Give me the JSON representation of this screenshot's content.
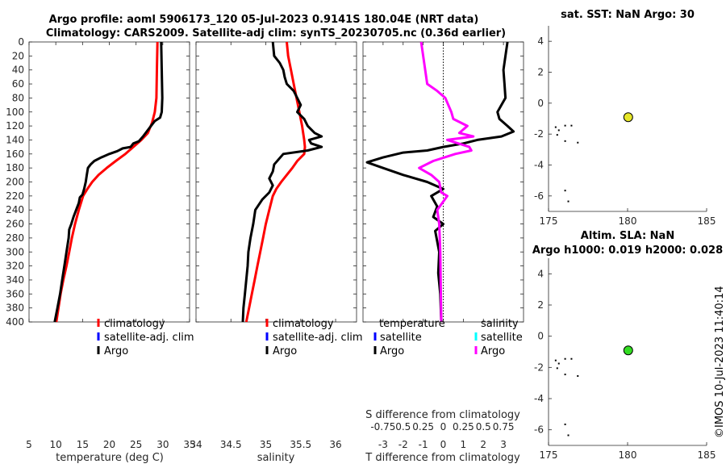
{
  "header": {
    "title_line1": "Argo profile: aoml 5906173_120 05-Jul-2023 0.9141S 180.04E (NRT data)",
    "title_line2": "Climatology: CARS2009. Satellite-adj clim: synTS_20230705.nc (0.36d earlier)"
  },
  "colors": {
    "climatology": "#ff0000",
    "satellite_adj": "#0000ff",
    "argo": "#000000",
    "argo_salinity_diff": "#ff00ff",
    "satellite_salinity": "#00ffff",
    "marker_sst": "#e6e629",
    "marker_sla": "#33dd22"
  },
  "legend_profiles": {
    "items": [
      "climatology",
      "satellite-adj. clim",
      "Argo"
    ]
  },
  "legend_diff": {
    "temperature_header": "temperature",
    "salinity_header": "salinity",
    "temperature_items": [
      "satellite",
      "Argo"
    ],
    "salinity_items": [
      "satellite",
      "Argo"
    ]
  },
  "side": {
    "sst_title": "sat. SST: NaN Argo: 30",
    "sla_title": "Altim. SLA: NaN",
    "sla_subtitle": "Argo h1000: 0.019 h2000: 0.028"
  },
  "footer": {
    "stamp": "©IMOS 10-Jul-2023 11:40:14"
  },
  "chart_data": [
    {
      "type": "line",
      "title": "",
      "xlabel": "temperature (deg C)",
      "ylabel": "depth",
      "xlim": [
        5,
        35
      ],
      "ylim": [
        400,
        0
      ],
      "xticks": [
        5,
        10,
        15,
        20,
        25,
        30,
        35
      ],
      "yticks": [
        0,
        20,
        40,
        60,
        80,
        100,
        120,
        140,
        160,
        180,
        200,
        220,
        240,
        260,
        280,
        300,
        320,
        340,
        360,
        380,
        400
      ],
      "series": [
        {
          "name": "climatology",
          "color": "#ff0000",
          "points": [
            [
              29.0,
              0
            ],
            [
              28.9,
              40
            ],
            [
              28.8,
              80
            ],
            [
              28.5,
              100
            ],
            [
              28.0,
              115
            ],
            [
              27.2,
              130
            ],
            [
              26.0,
              140
            ],
            [
              24.5,
              150
            ],
            [
              23.0,
              160
            ],
            [
              21.2,
              170
            ],
            [
              19.5,
              180
            ],
            [
              18.0,
              190
            ],
            [
              16.8,
              200
            ],
            [
              15.9,
              210
            ],
            [
              15.1,
              220
            ],
            [
              14.3,
              240
            ],
            [
              13.6,
              260
            ],
            [
              13.0,
              280
            ],
            [
              12.5,
              300
            ],
            [
              12.0,
              320
            ],
            [
              11.4,
              340
            ],
            [
              10.9,
              360
            ],
            [
              10.5,
              380
            ],
            [
              10.1,
              400
            ]
          ]
        },
        {
          "name": "Argo",
          "color": "#000000",
          "points": [
            [
              29.7,
              0
            ],
            [
              29.8,
              40
            ],
            [
              29.9,
              80
            ],
            [
              29.8,
              100
            ],
            [
              29.5,
              108
            ],
            [
              28.5,
              113
            ],
            [
              27.8,
              120
            ],
            [
              27.0,
              128
            ],
            [
              26.3,
              135
            ],
            [
              25.5,
              142
            ],
            [
              24.5,
              145
            ],
            [
              24.0,
              150
            ],
            [
              22.5,
              152
            ],
            [
              21.5,
              156
            ],
            [
              20.0,
              160
            ],
            [
              18.5,
              165
            ],
            [
              17.2,
              170
            ],
            [
              16.5,
              175
            ],
            [
              16.0,
              180
            ],
            [
              15.8,
              190
            ],
            [
              15.6,
              200
            ],
            [
              15.3,
              210
            ],
            [
              15.0,
              218
            ],
            [
              14.5,
              222
            ],
            [
              14.3,
              230
            ],
            [
              13.8,
              240
            ],
            [
              13.3,
              250
            ],
            [
              12.9,
              260
            ],
            [
              12.5,
              268
            ],
            [
              12.4,
              280
            ],
            [
              12.0,
              300
            ],
            [
              11.6,
              320
            ],
            [
              11.2,
              340
            ],
            [
              10.8,
              360
            ],
            [
              10.3,
              380
            ],
            [
              9.8,
              400
            ]
          ]
        }
      ]
    },
    {
      "type": "line",
      "title": "",
      "xlabel": "salinity",
      "ylabel": "depth",
      "xlim": [
        34,
        36.3
      ],
      "ylim": [
        400,
        0
      ],
      "xticks": [
        34,
        34.5,
        35,
        35.5,
        36
      ],
      "series": [
        {
          "name": "climatology",
          "color": "#ff0000",
          "points": [
            [
              35.3,
              0
            ],
            [
              35.32,
              20
            ],
            [
              35.36,
              40
            ],
            [
              35.4,
              60
            ],
            [
              35.44,
              80
            ],
            [
              35.48,
              100
            ],
            [
              35.52,
              120
            ],
            [
              35.55,
              140
            ],
            [
              35.56,
              150
            ],
            [
              35.55,
              160
            ],
            [
              35.45,
              170
            ],
            [
              35.38,
              180
            ],
            [
              35.3,
              190
            ],
            [
              35.22,
              200
            ],
            [
              35.15,
              210
            ],
            [
              35.1,
              220
            ],
            [
              35.05,
              240
            ],
            [
              35.0,
              260
            ],
            [
              34.96,
              280
            ],
            [
              34.92,
              300
            ],
            [
              34.88,
              320
            ],
            [
              34.84,
              340
            ],
            [
              34.8,
              360
            ],
            [
              34.76,
              380
            ],
            [
              34.72,
              400
            ]
          ]
        },
        {
          "name": "Argo",
          "color": "#000000",
          "points": [
            [
              35.1,
              0
            ],
            [
              35.12,
              20
            ],
            [
              35.2,
              30
            ],
            [
              35.25,
              40
            ],
            [
              35.27,
              50
            ],
            [
              35.3,
              60
            ],
            [
              35.4,
              70
            ],
            [
              35.45,
              80
            ],
            [
              35.5,
              90
            ],
            [
              35.45,
              100
            ],
            [
              35.55,
              110
            ],
            [
              35.6,
              120
            ],
            [
              35.7,
              130
            ],
            [
              35.8,
              135
            ],
            [
              35.62,
              140
            ],
            [
              35.65,
              145
            ],
            [
              35.8,
              150
            ],
            [
              35.6,
              155
            ],
            [
              35.25,
              160
            ],
            [
              35.12,
              175
            ],
            [
              35.1,
              185
            ],
            [
              35.05,
              195
            ],
            [
              35.1,
              205
            ],
            [
              35.05,
              215
            ],
            [
              34.95,
              225
            ],
            [
              34.85,
              240
            ],
            [
              34.82,
              260
            ],
            [
              34.78,
              280
            ],
            [
              34.75,
              300
            ],
            [
              34.74,
              320
            ],
            [
              34.72,
              340
            ],
            [
              34.7,
              360
            ],
            [
              34.68,
              380
            ],
            [
              34.67,
              400
            ]
          ]
        }
      ]
    },
    {
      "type": "line",
      "title": "",
      "xlabel": "T difference from climatology",
      "xlabel_top": "S difference from climatology",
      "xlim": [
        -4,
        4
      ],
      "ylim": [
        400,
        0
      ],
      "xticks": [
        -3,
        -2,
        -1,
        0,
        1,
        2,
        3
      ],
      "xticks_secondary": [
        "-0.75",
        "0.5",
        "0.25",
        "0",
        "0.25",
        "0.5",
        "0.75"
      ],
      "series": [
        {
          "name": "Argo temperature difference",
          "color": "#000000",
          "points": [
            [
              3.2,
              0
            ],
            [
              3.1,
              20
            ],
            [
              3.0,
              40
            ],
            [
              3.05,
              60
            ],
            [
              3.1,
              80
            ],
            [
              2.9,
              90
            ],
            [
              2.7,
              100
            ],
            [
              2.8,
              110
            ],
            [
              3.2,
              120
            ],
            [
              3.5,
              128
            ],
            [
              2.9,
              135
            ],
            [
              1.7,
              140
            ],
            [
              1.0,
              145
            ],
            [
              0.0,
              150
            ],
            [
              -0.8,
              155
            ],
            [
              -2.0,
              158
            ],
            [
              -3.0,
              165
            ],
            [
              -3.8,
              172
            ],
            [
              -3.0,
              180
            ],
            [
              -2.0,
              190
            ],
            [
              -0.8,
              200
            ],
            [
              0.0,
              210
            ],
            [
              -0.6,
              220
            ],
            [
              -0.3,
              235
            ],
            [
              -0.5,
              250
            ],
            [
              0.0,
              260
            ],
            [
              -0.4,
              270
            ],
            [
              -0.3,
              285
            ],
            [
              -0.2,
              300
            ],
            [
              -0.25,
              330
            ],
            [
              -0.15,
              360
            ],
            [
              -0.1,
              400
            ]
          ]
        },
        {
          "name": "Argo salinity difference",
          "color": "#ff00ff",
          "points": [
            [
              -1.1,
              0
            ],
            [
              -1.0,
              20
            ],
            [
              -0.9,
              40
            ],
            [
              -0.8,
              60
            ],
            [
              -0.3,
              70
            ],
            [
              0.1,
              80
            ],
            [
              0.4,
              100
            ],
            [
              0.5,
              110
            ],
            [
              1.2,
              120
            ],
            [
              0.8,
              130
            ],
            [
              1.5,
              135
            ],
            [
              0.2,
              140
            ],
            [
              1.3,
              150
            ],
            [
              1.4,
              155
            ],
            [
              0.6,
              160
            ],
            [
              -0.5,
              170
            ],
            [
              -1.2,
              180
            ],
            [
              -0.6,
              190
            ],
            [
              -0.2,
              200
            ],
            [
              -0.1,
              215
            ],
            [
              0.2,
              220
            ],
            [
              -0.3,
              240
            ],
            [
              -0.2,
              260
            ],
            [
              -0.15,
              300
            ],
            [
              -0.1,
              400
            ]
          ]
        }
      ]
    },
    {
      "type": "scatter",
      "title": "sat. SST: NaN Argo: 30",
      "xlim": [
        175,
        185
      ],
      "ylim": [
        -7,
        5
      ],
      "xticks": [
        175,
        180,
        185
      ],
      "yticks": [
        4,
        2,
        0,
        -2,
        -4,
        -6
      ],
      "points": [
        {
          "x": 180.04,
          "y": -0.91,
          "color": "#e6e629"
        }
      ],
      "dots": [
        [
          175.4,
          -1.5
        ],
        [
          175.6,
          -1.7
        ],
        [
          175.5,
          -2.0
        ],
        [
          176.0,
          -1.4
        ],
        [
          176.4,
          -1.4
        ],
        [
          176.8,
          -2.5
        ],
        [
          176.0,
          -2.4
        ],
        [
          176.0,
          -5.6
        ],
        [
          176.2,
          -6.3
        ]
      ]
    },
    {
      "type": "scatter",
      "title": "Altim. SLA: NaN",
      "xlim": [
        175,
        185
      ],
      "ylim": [
        -7,
        5
      ],
      "xticks": [
        175,
        180,
        185
      ],
      "yticks": [
        4,
        2,
        0,
        -2,
        -4,
        -6
      ],
      "points": [
        {
          "x": 180.04,
          "y": -0.91,
          "color": "#33dd22"
        }
      ],
      "dots": [
        [
          175.4,
          -1.5
        ],
        [
          175.6,
          -1.7
        ],
        [
          175.5,
          -2.0
        ],
        [
          176.0,
          -1.4
        ],
        [
          176.4,
          -1.4
        ],
        [
          176.8,
          -2.5
        ],
        [
          176.0,
          -2.4
        ],
        [
          176.0,
          -5.6
        ],
        [
          176.2,
          -6.3
        ]
      ]
    }
  ]
}
